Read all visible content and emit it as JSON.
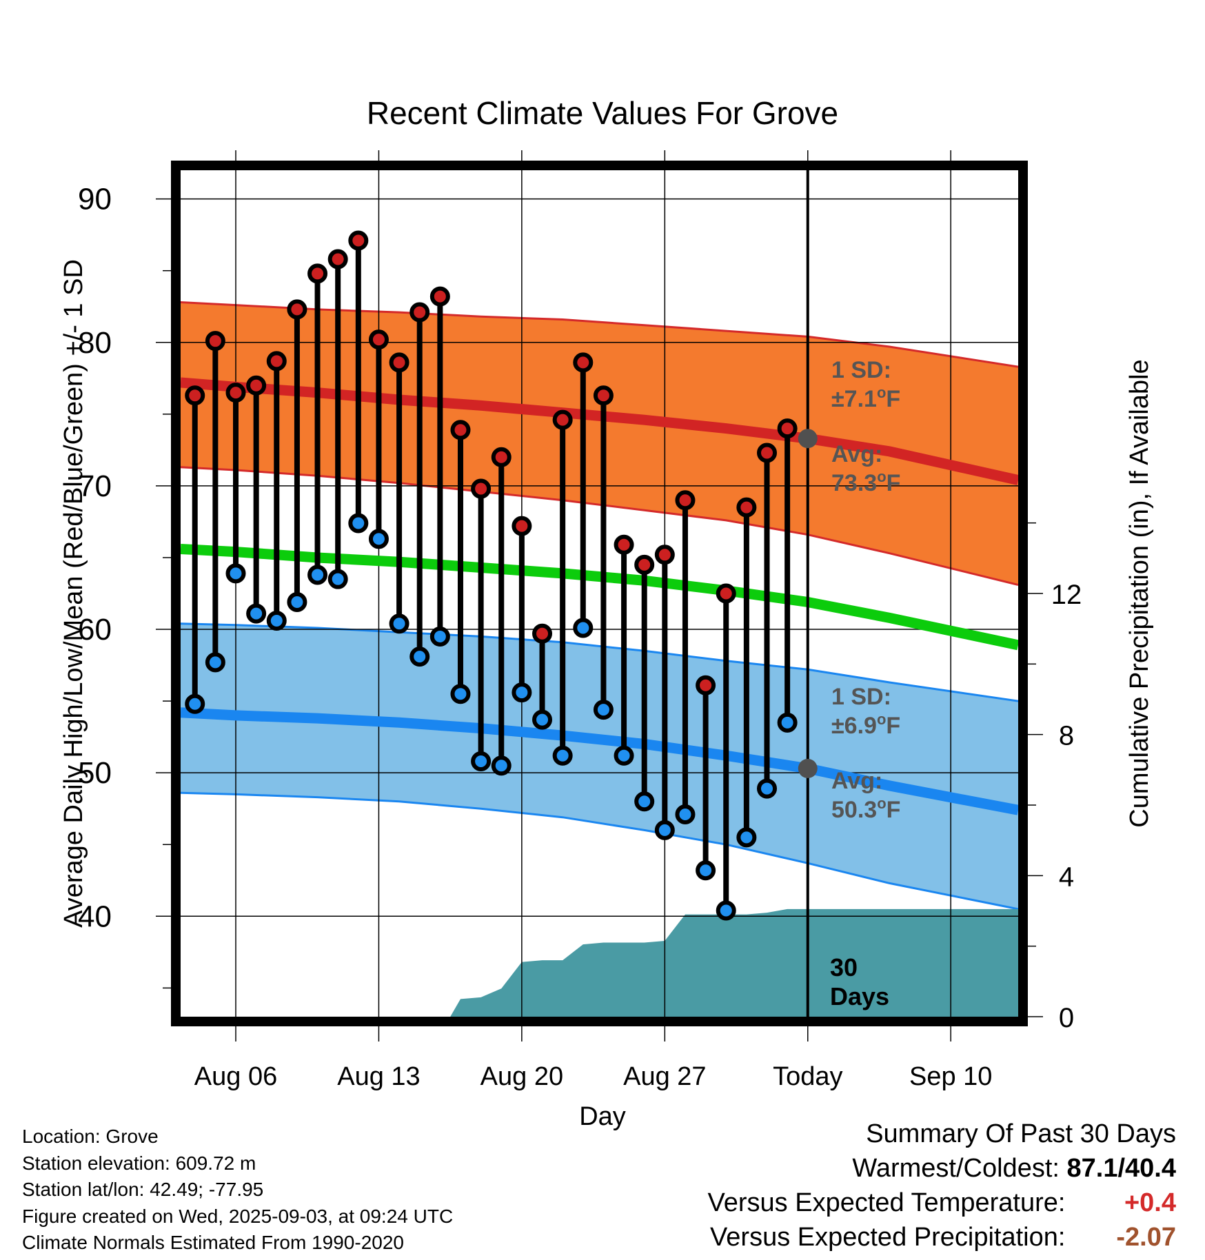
{
  "colors": {
    "high_band": "#f47a2e",
    "high_band_edge": "#d42a2a",
    "high_avg_line": "#d22424",
    "low_band": "#82c0e8",
    "low_band_edge": "#1a86f0",
    "low_avg_line": "#1a86f0",
    "mean_line": "#0ccc0c",
    "precip_fill": "#4a9ba4",
    "high_marker": "#cc2020",
    "low_marker": "#2090f0",
    "avg_dot": "#505050",
    "positive_anomaly": "#d42a2a",
    "negative_precip_anomaly": "#a0522d"
  },
  "chart_data": {
    "type": "line",
    "title": "Recent Climate Values For Grove",
    "xlabel": "Day",
    "ylabel": "Average Daily High/Low/Mean (Red/Blue/Green) +/- 1 SD",
    "y2label": "Cumulative Precipitation (in), If Available",
    "ylim": [
      33,
      92
    ],
    "y2lim": [
      0,
      24
    ],
    "yticks": [
      40,
      50,
      60,
      70,
      80,
      90
    ],
    "y2ticks": [
      0,
      4,
      8,
      12
    ],
    "xticks": [
      {
        "day": 6,
        "label": "Aug 06"
      },
      {
        "day": 13,
        "label": "Aug 13"
      },
      {
        "day": 20,
        "label": "Aug 20"
      },
      {
        "day": 27,
        "label": "Aug 27"
      },
      {
        "day": 34,
        "label": "Today"
      },
      {
        "day": 41,
        "label": "Sep 10"
      }
    ],
    "xlim": [
      3.3,
      44.3
    ],
    "today_day": 34,
    "grid": true,
    "normals": {
      "day": [
        3.3,
        6,
        10,
        14,
        18,
        22,
        26,
        30,
        34,
        38,
        44.3
      ],
      "high_avg": [
        77.2,
        76.9,
        76.5,
        76.0,
        75.6,
        75.1,
        74.6,
        74.0,
        73.3,
        72.4,
        70.4
      ],
      "high_upper": [
        82.8,
        82.6,
        82.3,
        82.1,
        81.8,
        81.6,
        81.2,
        80.8,
        80.4,
        79.7,
        78.3
      ],
      "high_lower": [
        71.3,
        71.1,
        70.7,
        70.2,
        69.6,
        69.0,
        68.3,
        67.6,
        66.6,
        65.3,
        63.1
      ],
      "mean_avg": [
        65.6,
        65.4,
        65.0,
        64.7,
        64.3,
        63.9,
        63.4,
        62.7,
        61.9,
        60.8,
        58.9
      ],
      "low_avg": [
        54.2,
        54.0,
        53.8,
        53.5,
        53.1,
        52.6,
        52.0,
        51.2,
        50.3,
        49.1,
        47.4
      ],
      "low_upper": [
        60.4,
        60.3,
        60.1,
        59.8,
        59.5,
        59.1,
        58.5,
        57.8,
        57.2,
        56.3,
        55.0
      ],
      "low_lower": [
        48.6,
        48.5,
        48.3,
        48.0,
        47.5,
        46.9,
        46.0,
        45.0,
        43.7,
        42.3,
        40.5
      ]
    },
    "daily": {
      "day": [
        4,
        5,
        6,
        7,
        8,
        9,
        10,
        11,
        12,
        13,
        14,
        15,
        16,
        17,
        18,
        19,
        20,
        21,
        22,
        23,
        24,
        25,
        26,
        27,
        28,
        29,
        30,
        31,
        32,
        33
      ],
      "high": [
        76.3,
        80.1,
        76.5,
        77.0,
        78.7,
        82.3,
        84.8,
        85.8,
        87.1,
        80.2,
        78.6,
        82.1,
        83.2,
        73.9,
        69.8,
        72.0,
        67.2,
        59.7,
        74.6,
        78.6,
        76.3,
        65.9,
        64.5,
        65.2,
        69.0,
        56.1,
        62.5,
        68.5,
        72.3,
        74.0
      ],
      "low": [
        54.8,
        57.7,
        63.9,
        61.1,
        60.6,
        61.9,
        63.8,
        63.5,
        67.4,
        66.3,
        60.4,
        58.1,
        59.5,
        55.5,
        50.8,
        50.5,
        55.6,
        53.7,
        51.2,
        60.1,
        54.4,
        51.2,
        48.0,
        46.0,
        47.1,
        43.2,
        40.4,
        45.5,
        48.9,
        53.5
      ]
    },
    "precip_cumulative": {
      "day": [
        3.3,
        4,
        5,
        6,
        7,
        8,
        9,
        10,
        11,
        12,
        13,
        14,
        15,
        16,
        16.5,
        17,
        18,
        19,
        20,
        21,
        22,
        23,
        24,
        25,
        26,
        27,
        28,
        29,
        30,
        31,
        32,
        33,
        34,
        35,
        44.3
      ],
      "value": [
        0,
        0,
        0,
        0,
        0,
        0,
        0,
        0,
        0,
        0,
        0,
        0,
        0,
        0,
        0,
        0.5,
        0.55,
        0.8,
        1.55,
        1.6,
        1.6,
        2.05,
        2.1,
        2.1,
        2.1,
        2.15,
        2.9,
        2.9,
        2.9,
        2.9,
        2.95,
        3.05,
        3.05,
        3.05,
        3.05
      ]
    },
    "annotations": {
      "high_sd_label": "1 SD:",
      "high_sd_value": "±7.1",
      "high_avg_label": "Avg:",
      "high_avg_value": "73.3",
      "low_sd_label": "1 SD:",
      "low_sd_value": "±6.9",
      "low_avg_label": "Avg:",
      "low_avg_value": "50.3",
      "degree_symbol": "o",
      "unit": "F",
      "days_number": "30",
      "days_word": "Days"
    }
  },
  "footer": {
    "location": "Location: Grove",
    "elevation": "Station elevation: 609.72 m",
    "latlon": "Station lat/lon: 42.49; -77.95",
    "created": "Figure created on Wed, 2025-09-03, at 09:24 UTC",
    "normals": "Climate Normals Estimated From 1990-2020"
  },
  "summary": {
    "title": "Summary Of Past 30 Days",
    "warmest_label": "Warmest/Coldest:",
    "warmest_value": "87.1/40.4",
    "temp_label": "Versus Expected Temperature:",
    "temp_value": "+0.4",
    "precip_label": "Versus Expected Precipitation:",
    "precip_value": "-2.07"
  }
}
